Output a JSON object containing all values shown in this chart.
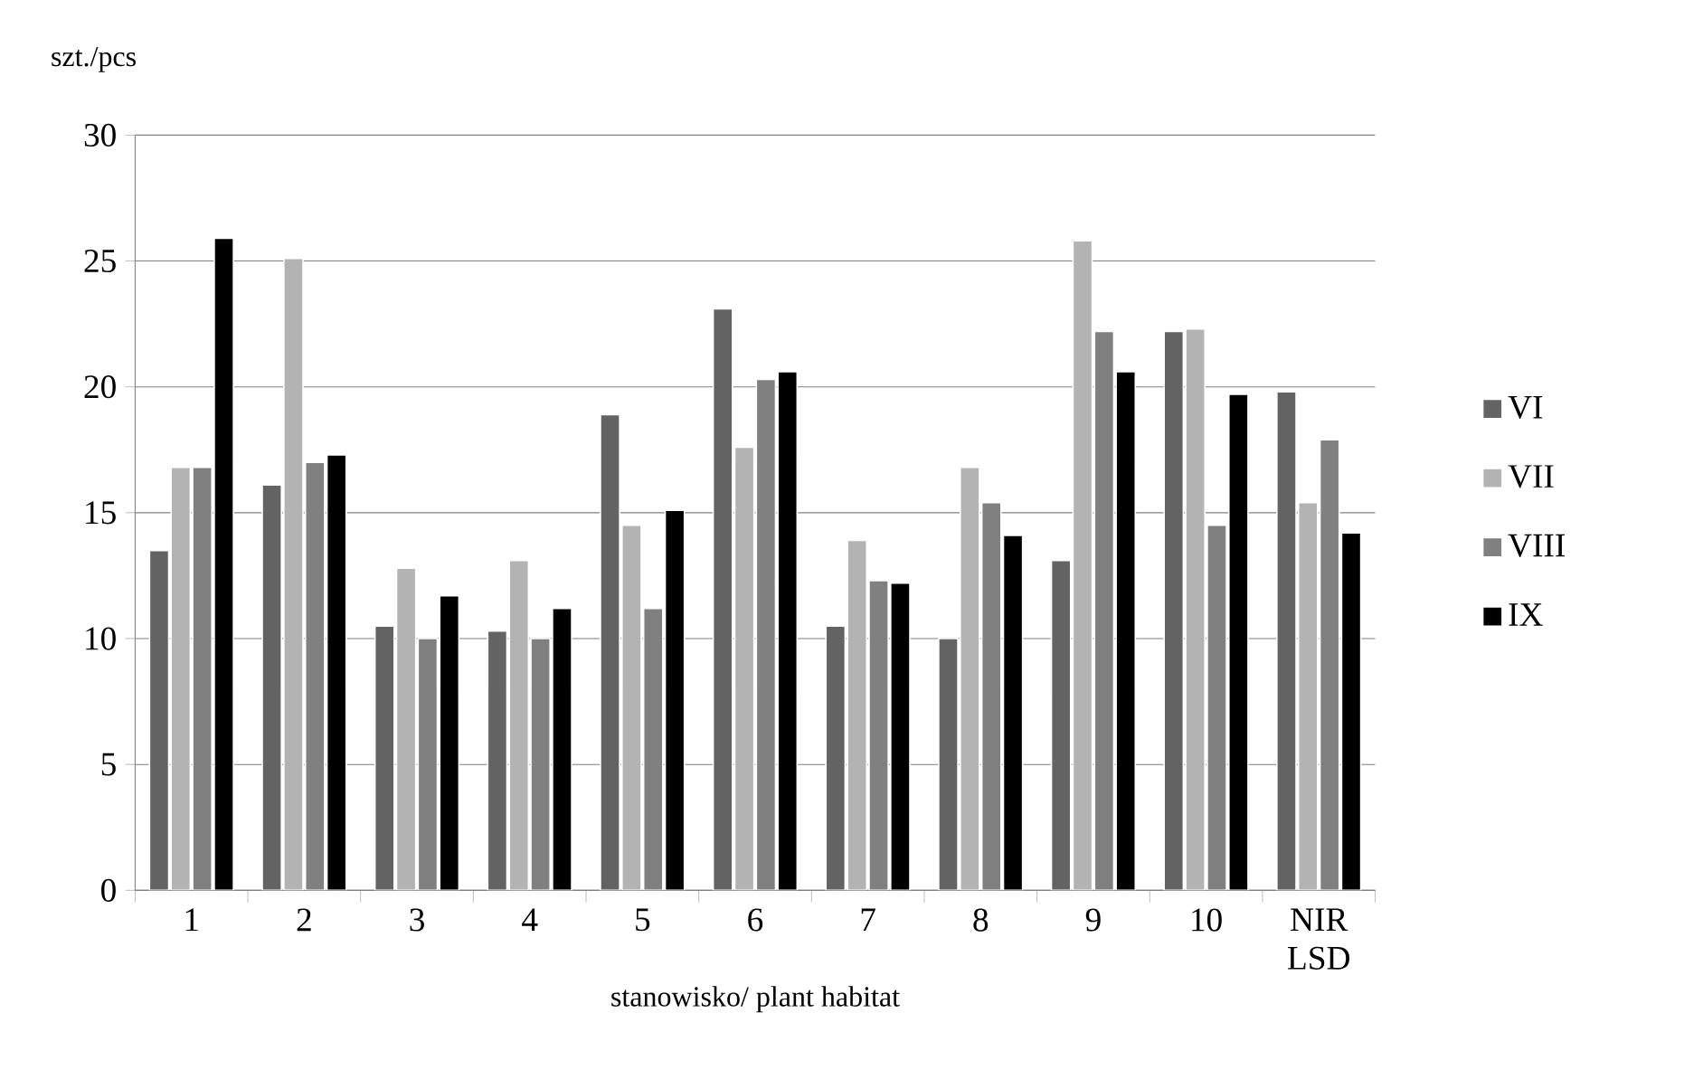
{
  "chart_data": {
    "type": "bar",
    "ylabel": "szt./pcs",
    "xlabel": "stanowisko/ plant habitat",
    "categories": [
      "1",
      "2",
      "3",
      "4",
      "5",
      "6",
      "7",
      "8",
      "9",
      "10",
      "NIR LSD"
    ],
    "series": [
      {
        "name": "VI",
        "color": "#636363",
        "values": [
          13.5,
          16.1,
          10.5,
          10.3,
          18.9,
          23.1,
          10.5,
          10.0,
          13.1,
          22.2,
          19.8
        ]
      },
      {
        "name": "VII",
        "color": "#b3b3b3",
        "values": [
          16.8,
          25.1,
          12.8,
          13.1,
          14.5,
          17.6,
          13.9,
          16.8,
          25.8,
          22.3,
          15.4
        ]
      },
      {
        "name": "VIII",
        "color": "#808080",
        "values": [
          16.8,
          17.0,
          10.0,
          10.0,
          11.2,
          20.3,
          12.3,
          15.4,
          22.2,
          14.5,
          17.9
        ]
      },
      {
        "name": "IX",
        "color": "#000000",
        "values": [
          25.9,
          17.3,
          11.7,
          11.2,
          15.1,
          20.6,
          12.2,
          14.1,
          20.6,
          19.7,
          14.2
        ]
      }
    ],
    "ylim": [
      0,
      30
    ],
    "yticks": [
      0,
      5,
      10,
      15,
      20,
      25,
      30
    ],
    "grid": "y",
    "legend": "right"
  }
}
